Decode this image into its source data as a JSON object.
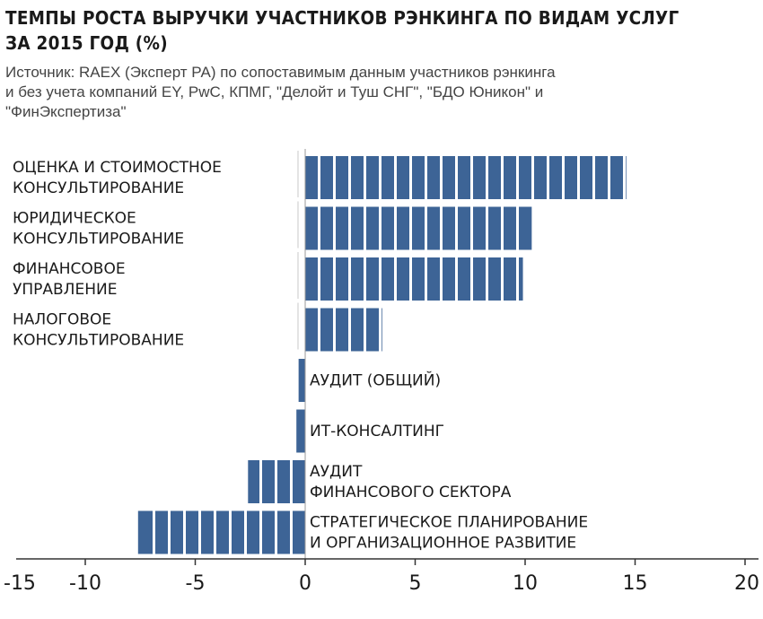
{
  "header": {
    "title_line1": "ТЕМПЫ РОСТА ВЫРУЧКИ УЧАСТНИКОВ РЭНКИНГА ПО ВИДАМ УСЛУГ",
    "title_line2": "ЗА 2015 ГОД (%)",
    "source_line1": "Источник: RAEX (Эксперт РА) по сопоставимым данным участников рэнкинга",
    "source_line2": "и без учета компаний EY, PwC, КПМГ, \"Делойт и Туш СНГ\", \"БДО Юникон\" и",
    "source_line3": "\"ФинЭкспертиза\""
  },
  "chart_data": {
    "type": "bar",
    "orientation": "horizontal",
    "categories": [
      [
        "ОЦЕНКА И СТОИМОСТНОЕ",
        "КОНСУЛЬТИРОВАНИЕ"
      ],
      [
        "ЮРИДИЧЕСКОЕ",
        "КОНСУЛЬТИРОВАНИЕ"
      ],
      [
        "ФИНАНСОВОЕ",
        "УПРАВЛЕНИЕ"
      ],
      [
        "НАЛОГОВОЕ",
        "КОНСУЛЬТИРОВАНИЕ"
      ],
      [
        "АУДИТ (ОБЩИЙ)"
      ],
      [
        "ИТ-КОНСАЛТИНГ"
      ],
      [
        "АУДИТ",
        "ФИНАНСОВОГО СЕКТОРА"
      ],
      [
        "СТРАТЕГИЧЕСКОЕ ПЛАНИРОВАНИЕ",
        "И ОРГАНИЗАЦИОННОЕ РАЗВИТИЕ"
      ]
    ],
    "values": [
      14.6,
      10.3,
      9.9,
      3.5,
      -0.3,
      -0.4,
      -2.6,
      -7.6
    ],
    "xlim": [
      -15,
      20
    ],
    "xticks": [
      -15,
      -10,
      -5,
      0,
      5,
      10,
      15,
      20
    ],
    "xtick_labels": [
      "-15",
      "-10",
      "-5",
      "0",
      "5",
      "10",
      "15",
      "20"
    ],
    "bar_color": "#3d6496",
    "grid": false
  }
}
